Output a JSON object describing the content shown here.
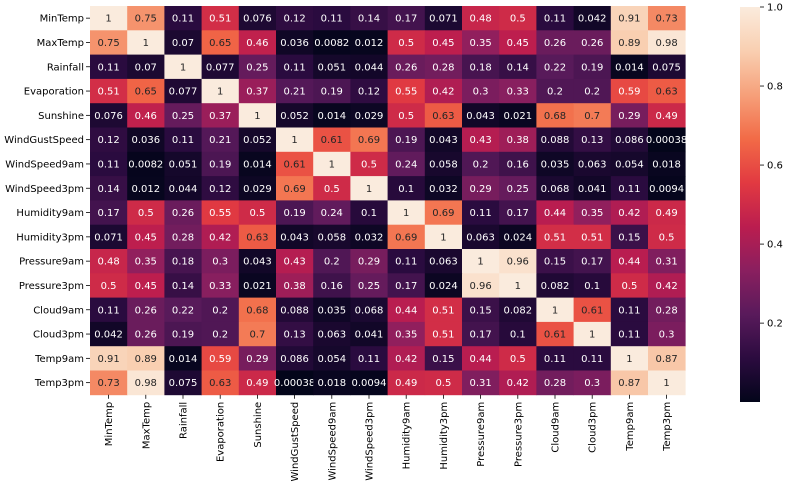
{
  "chart_data": {
    "type": "heatmap",
    "title": "",
    "xlabel": "",
    "ylabel": "",
    "labels": [
      "MinTemp",
      "MaxTemp",
      "Rainfall",
      "Evaporation",
      "Sunshine",
      "WindGustSpeed",
      "WindSpeed9am",
      "WindSpeed3pm",
      "Humidity9am",
      "Humidity3pm",
      "Pressure9am",
      "Pressure3pm",
      "Cloud9am",
      "Cloud3pm",
      "Temp9am",
      "Temp3pm"
    ],
    "values": [
      [
        1,
        0.75,
        0.11,
        0.51,
        0.076,
        0.12,
        0.11,
        0.14,
        0.17,
        0.071,
        0.48,
        0.5,
        0.11,
        0.042,
        0.91,
        0.73
      ],
      [
        0.75,
        1,
        0.07,
        0.65,
        0.46,
        0.036,
        0.0082,
        0.012,
        0.5,
        0.45,
        0.35,
        0.45,
        0.26,
        0.26,
        0.89,
        0.98
      ],
      [
        0.11,
        0.07,
        1,
        0.077,
        0.25,
        0.11,
        0.051,
        0.044,
        0.26,
        0.28,
        0.18,
        0.14,
        0.22,
        0.19,
        0.014,
        0.075
      ],
      [
        0.51,
        0.65,
        0.077,
        1,
        0.37,
        0.21,
        0.19,
        0.12,
        0.55,
        0.42,
        0.3,
        0.33,
        0.2,
        0.2,
        0.59,
        0.63
      ],
      [
        0.076,
        0.46,
        0.25,
        0.37,
        1,
        0.052,
        0.014,
        0.029,
        0.5,
        0.63,
        0.043,
        0.021,
        0.68,
        0.7,
        0.29,
        0.49
      ],
      [
        0.12,
        0.036,
        0.11,
        0.21,
        0.052,
        1,
        0.61,
        0.69,
        0.19,
        0.043,
        0.43,
        0.38,
        0.088,
        0.13,
        0.086,
        0.00038
      ],
      [
        0.11,
        0.0082,
        0.051,
        0.19,
        0.014,
        0.61,
        1,
        0.5,
        0.24,
        0.058,
        0.2,
        0.16,
        0.035,
        0.063,
        0.054,
        0.018
      ],
      [
        0.14,
        0.012,
        0.044,
        0.12,
        0.029,
        0.69,
        0.5,
        1,
        0.1,
        0.032,
        0.29,
        0.25,
        0.068,
        0.041,
        0.11,
        0.0094
      ],
      [
        0.17,
        0.5,
        0.26,
        0.55,
        0.5,
        0.19,
        0.24,
        0.1,
        1,
        0.69,
        0.11,
        0.17,
        0.44,
        0.35,
        0.42,
        0.49
      ],
      [
        0.071,
        0.45,
        0.28,
        0.42,
        0.63,
        0.043,
        0.058,
        0.032,
        0.69,
        1,
        0.063,
        0.024,
        0.51,
        0.51,
        0.15,
        0.5
      ],
      [
        0.48,
        0.35,
        0.18,
        0.3,
        0.043,
        0.43,
        0.2,
        0.29,
        0.11,
        0.063,
        1,
        0.96,
        0.15,
        0.17,
        0.44,
        0.31
      ],
      [
        0.5,
        0.45,
        0.14,
        0.33,
        0.021,
        0.38,
        0.16,
        0.25,
        0.17,
        0.024,
        0.96,
        1,
        0.082,
        0.1,
        0.5,
        0.42
      ],
      [
        0.11,
        0.26,
        0.22,
        0.2,
        0.68,
        0.088,
        0.035,
        0.068,
        0.44,
        0.51,
        0.15,
        0.082,
        1,
        0.61,
        0.11,
        0.28
      ],
      [
        0.042,
        0.26,
        0.19,
        0.2,
        0.7,
        0.13,
        0.063,
        0.041,
        0.35,
        0.51,
        0.17,
        0.1,
        0.61,
        1,
        0.11,
        0.3
      ],
      [
        0.91,
        0.89,
        0.014,
        0.59,
        0.29,
        0.086,
        0.054,
        0.11,
        0.42,
        0.15,
        0.44,
        0.5,
        0.11,
        0.11,
        1,
        0.87
      ],
      [
        0.73,
        0.98,
        0.075,
        0.63,
        0.49,
        0.00038,
        0.018,
        0.0094,
        0.49,
        0.5,
        0.31,
        0.42,
        0.28,
        0.3,
        0.87,
        1
      ]
    ],
    "value_labels": [
      [
        "1",
        "0.75",
        "0.11",
        "0.51",
        "0.076",
        "0.12",
        "0.11",
        "0.14",
        "0.17",
        "0.071",
        "0.48",
        "0.5",
        "0.11",
        "0.042",
        "0.91",
        "0.73"
      ],
      [
        "0.75",
        "1",
        "0.07",
        "0.65",
        "0.46",
        "0.036",
        "0.0082",
        "0.012",
        "0.5",
        "0.45",
        "0.35",
        "0.45",
        "0.26",
        "0.26",
        "0.89",
        "0.98"
      ],
      [
        "0.11",
        "0.07",
        "1",
        "0.077",
        "0.25",
        "0.11",
        "0.051",
        "0.044",
        "0.26",
        "0.28",
        "0.18",
        "0.14",
        "0.22",
        "0.19",
        "0.014",
        "0.075"
      ],
      [
        "0.51",
        "0.65",
        "0.077",
        "1",
        "0.37",
        "0.21",
        "0.19",
        "0.12",
        "0.55",
        "0.42",
        "0.3",
        "0.33",
        "0.2",
        "0.2",
        "0.59",
        "0.63"
      ],
      [
        "0.076",
        "0.46",
        "0.25",
        "0.37",
        "1",
        "0.052",
        "0.014",
        "0.029",
        "0.5",
        "0.63",
        "0.043",
        "0.021",
        "0.68",
        "0.7",
        "0.29",
        "0.49"
      ],
      [
        "0.12",
        "0.036",
        "0.11",
        "0.21",
        "0.052",
        "1",
        "0.61",
        "0.69",
        "0.19",
        "0.043",
        "0.43",
        "0.38",
        "0.088",
        "0.13",
        "0.086",
        "0.00038"
      ],
      [
        "0.11",
        "0.0082",
        "0.051",
        "0.19",
        "0.014",
        "0.61",
        "1",
        "0.5",
        "0.24",
        "0.058",
        "0.2",
        "0.16",
        "0.035",
        "0.063",
        "0.054",
        "0.018"
      ],
      [
        "0.14",
        "0.012",
        "0.044",
        "0.12",
        "0.029",
        "0.69",
        "0.5",
        "1",
        "0.1",
        "0.032",
        "0.29",
        "0.25",
        "0.068",
        "0.041",
        "0.11",
        "0.0094"
      ],
      [
        "0.17",
        "0.5",
        "0.26",
        "0.55",
        "0.5",
        "0.19",
        "0.24",
        "0.1",
        "1",
        "0.69",
        "0.11",
        "0.17",
        "0.44",
        "0.35",
        "0.42",
        "0.49"
      ],
      [
        "0.071",
        "0.45",
        "0.28",
        "0.42",
        "0.63",
        "0.043",
        "0.058",
        "0.032",
        "0.69",
        "1",
        "0.063",
        "0.024",
        "0.51",
        "0.51",
        "0.15",
        "0.5"
      ],
      [
        "0.48",
        "0.35",
        "0.18",
        "0.3",
        "0.043",
        "0.43",
        "0.2",
        "0.29",
        "0.11",
        "0.063",
        "1",
        "0.96",
        "0.15",
        "0.17",
        "0.44",
        "0.31"
      ],
      [
        "0.5",
        "0.45",
        "0.14",
        "0.33",
        "0.021",
        "0.38",
        "0.16",
        "0.25",
        "0.17",
        "0.024",
        "0.96",
        "1",
        "0.082",
        "0.1",
        "0.5",
        "0.42"
      ],
      [
        "0.11",
        "0.26",
        "0.22",
        "0.2",
        "0.68",
        "0.088",
        "0.035",
        "0.068",
        "0.44",
        "0.51",
        "0.15",
        "0.082",
        "1",
        "0.61",
        "0.11",
        "0.28"
      ],
      [
        "0.042",
        "0.26",
        "0.19",
        "0.2",
        "0.7",
        "0.13",
        "0.063",
        "0.041",
        "0.35",
        "0.51",
        "0.17",
        "0.1",
        "0.61",
        "1",
        "0.11",
        "0.3"
      ],
      [
        "0.91",
        "0.89",
        "0.014",
        "0.59",
        "0.29",
        "0.086",
        "0.054",
        "0.11",
        "0.42",
        "0.15",
        "0.44",
        "0.5",
        "0.11",
        "0.11",
        "1",
        "0.87"
      ],
      [
        "0.73",
        "0.98",
        "0.075",
        "0.63",
        "0.49",
        "0.00038",
        "0.018",
        "0.0094",
        "0.49",
        "0.5",
        "0.31",
        "0.42",
        "0.28",
        "0.3",
        "0.87",
        "1"
      ]
    ],
    "colorbar": {
      "range": [
        0.00038,
        1
      ],
      "ticks": [
        0.2,
        0.4,
        0.6,
        0.8,
        1.0
      ],
      "tick_labels": [
        "0.2",
        "0.4",
        "0.6",
        "0.8",
        "1.0"
      ]
    },
    "colormap": [
      "#03051a",
      "#2b0b3f",
      "#591a5b",
      "#8a1f5f",
      "#bb1d4f",
      "#e23a41",
      "#f26b47",
      "#f6a07a",
      "#f9cfb1",
      "#faebdd"
    ],
    "grid": false,
    "legend": "colorbar-right"
  }
}
